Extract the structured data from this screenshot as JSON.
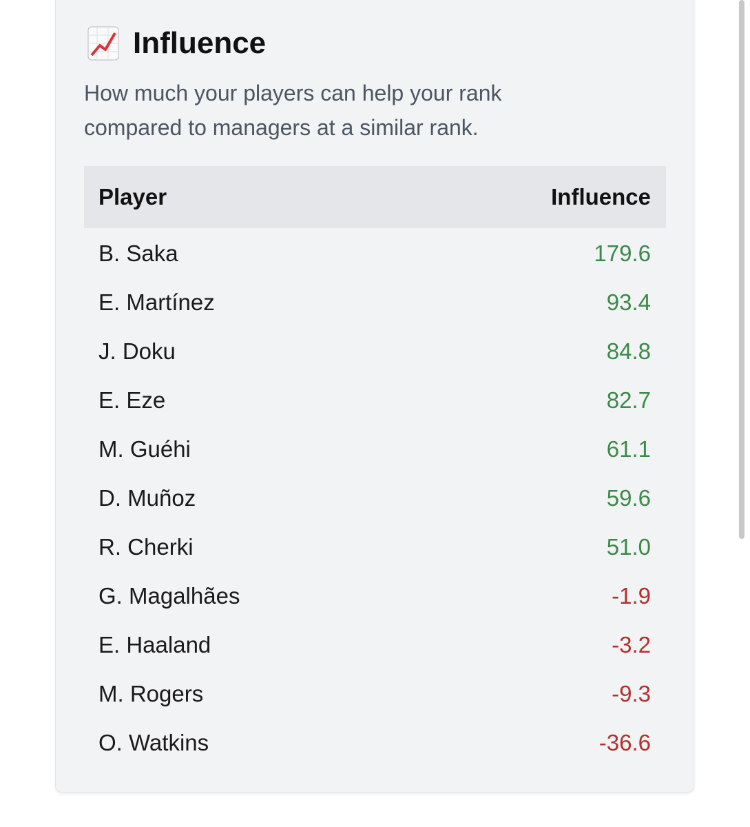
{
  "header": {
    "title": "Influence",
    "subtitle": "How much your players can help your rank compared to managers at a similar rank."
  },
  "table": {
    "columns": [
      "Player",
      "Influence"
    ],
    "rows": [
      [
        "B. Saka",
        "179.6"
      ],
      [
        "E. Martínez",
        "93.4"
      ],
      [
        "J. Doku",
        "84.8"
      ],
      [
        "E. Eze",
        "82.7"
      ],
      [
        "M. Guéhi",
        "61.1"
      ],
      [
        "D. Muñoz",
        "59.6"
      ],
      [
        "R. Cherki",
        "51.0"
      ],
      [
        "G. Magalhães",
        "-1.9"
      ],
      [
        "E. Haaland",
        "-3.2"
      ],
      [
        "M. Rogers",
        "-9.3"
      ],
      [
        "O. Watkins",
        "-36.6"
      ]
    ]
  }
}
